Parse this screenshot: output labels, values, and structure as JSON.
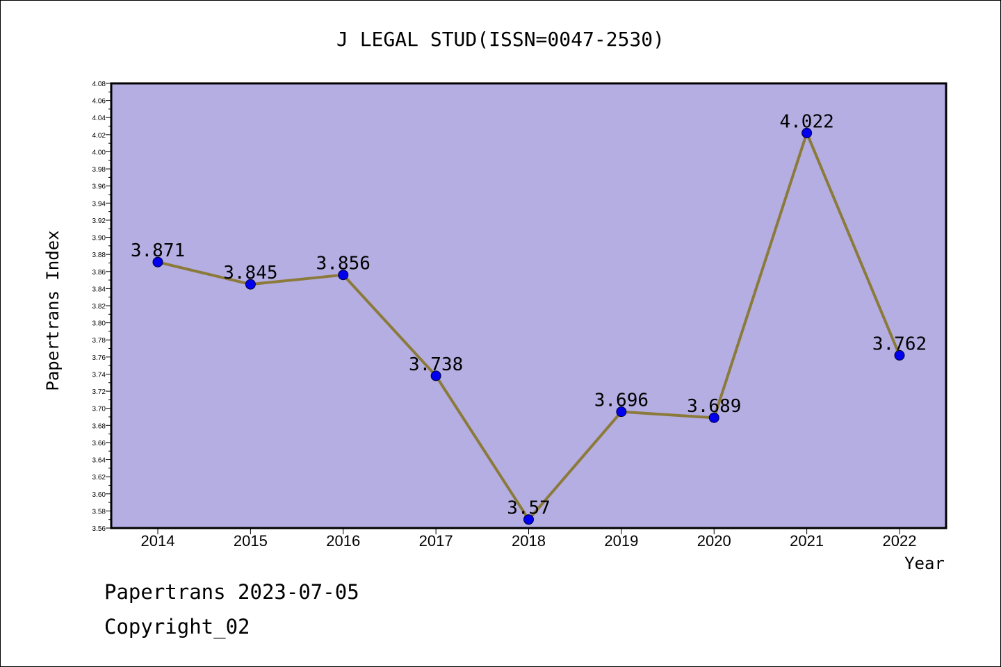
{
  "chart_data": {
    "type": "line",
    "title": "J LEGAL STUD(ISSN=0047-2530)",
    "xlabel": "Year",
    "ylabel": "Papertrans Index",
    "categories": [
      "2014",
      "2015",
      "2016",
      "2017",
      "2018",
      "2019",
      "2020",
      "2021",
      "2022"
    ],
    "series": [
      {
        "values": [
          3.871,
          3.845,
          3.856,
          3.738,
          3.57,
          3.696,
          3.689,
          4.022,
          3.762
        ],
        "labels": [
          "3.871",
          "3.845",
          "3.856",
          "3.738",
          "3.57",
          "3.696",
          "3.689",
          "4.022",
          "3.762"
        ]
      }
    ],
    "ylim": [
      3.56,
      4.08
    ],
    "yticks": [
      "3.56",
      "3.58",
      "3.60",
      "3.62",
      "3.64",
      "3.66",
      "3.68",
      "3.70",
      "3.72",
      "3.74",
      "3.76",
      "3.78",
      "3.80",
      "3.82",
      "3.84",
      "3.86",
      "3.88",
      "3.90",
      "3.92",
      "3.94",
      "3.96",
      "3.98",
      "4.00",
      "4.02",
      "4.04",
      "4.06",
      "4.08"
    ],
    "grid": false,
    "legend": "none",
    "colors": {
      "plot_background": "#b4aee2",
      "line": "#8b7a3a",
      "marker": "#0000ee"
    }
  },
  "footer": {
    "line1": "Papertrans 2023-07-05",
    "line2": "Copyright_02"
  }
}
